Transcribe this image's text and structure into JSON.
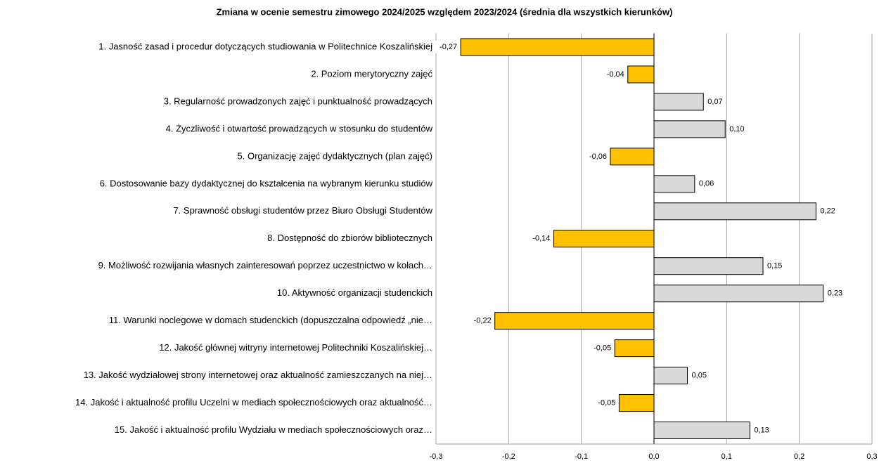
{
  "chart_data": {
    "type": "barh",
    "title": "Zmiana w ocenie semestru zimowego 2024/2025 względem 2023/2024 (średnia dla wszystkich kierunków)",
    "categories": [
      "1. Jasność zasad i procedur dotyczących studiowania w Politechnice Koszalińskiej",
      "2. Poziom merytoryczny zajęć",
      "3. Regularność prowadzonych zajęć i punktualność prowadzących",
      "4. Życzliwość i otwartość prowadzących w stosunku do studentów",
      "5. Organizację zajęć dydaktycznych (plan zajęć)",
      "6. Dostosowanie bazy dydaktycznej do kształcenia na wybranym kierunku studiów",
      "7. Sprawność obsługi studentów przez Biuro Obsługi Studentów",
      "8. Dostępność do zbiorów bibliotecznych",
      "9. Możliwość rozwijania własnych zainteresowań poprzez uczestnictwo w kołach…",
      "10. Aktywność organizacji studenckich",
      "11. Warunki noclegowe w domach studenckich (dopuszczalna odpowiedź „nie…",
      "12. Jakość głównej witryny internetowej Politechniki Koszalińskiej…",
      "13. Jakość wydziałowej strony internetowej oraz aktualność zamieszczanych na niej…",
      "14. Jakość i aktualność profilu Uczelni w mediach społecznościowych oraz aktualność…",
      "15. Jakość i aktualność profilu Wydziału w mediach społecznościowych oraz…"
    ],
    "values": [
      -0.266,
      -0.036,
      0.068,
      0.098,
      -0.06,
      0.056,
      0.223,
      -0.138,
      0.15,
      0.233,
      -0.219,
      -0.054,
      0.046,
      -0.048,
      0.132
    ],
    "value_labels": [
      "-0,27",
      "-0,04",
      "0,07",
      "0,10",
      "-0,06",
      "0,06",
      "0,22",
      "-0,14",
      "0,15",
      "0,23",
      "-0,22",
      "-0,05",
      "0,05",
      "-0,05",
      "0,13"
    ],
    "color": "#d9d9d9",
    "negative_color": "#ffc000",
    "xlim": [
      -0.3,
      0.3
    ],
    "xticks": [
      {
        "value": -0.3,
        "label": "-0,3"
      },
      {
        "value": -0.2,
        "label": "-0,2"
      },
      {
        "value": -0.1,
        "label": "-0,1"
      },
      {
        "value": 0,
        "label": "0,0"
      },
      {
        "value": 0.1,
        "label": "0,1"
      },
      {
        "value": 0.2,
        "label": "0,2"
      },
      {
        "value": 0.3,
        "label": "0,3"
      }
    ],
    "grid": true
  }
}
